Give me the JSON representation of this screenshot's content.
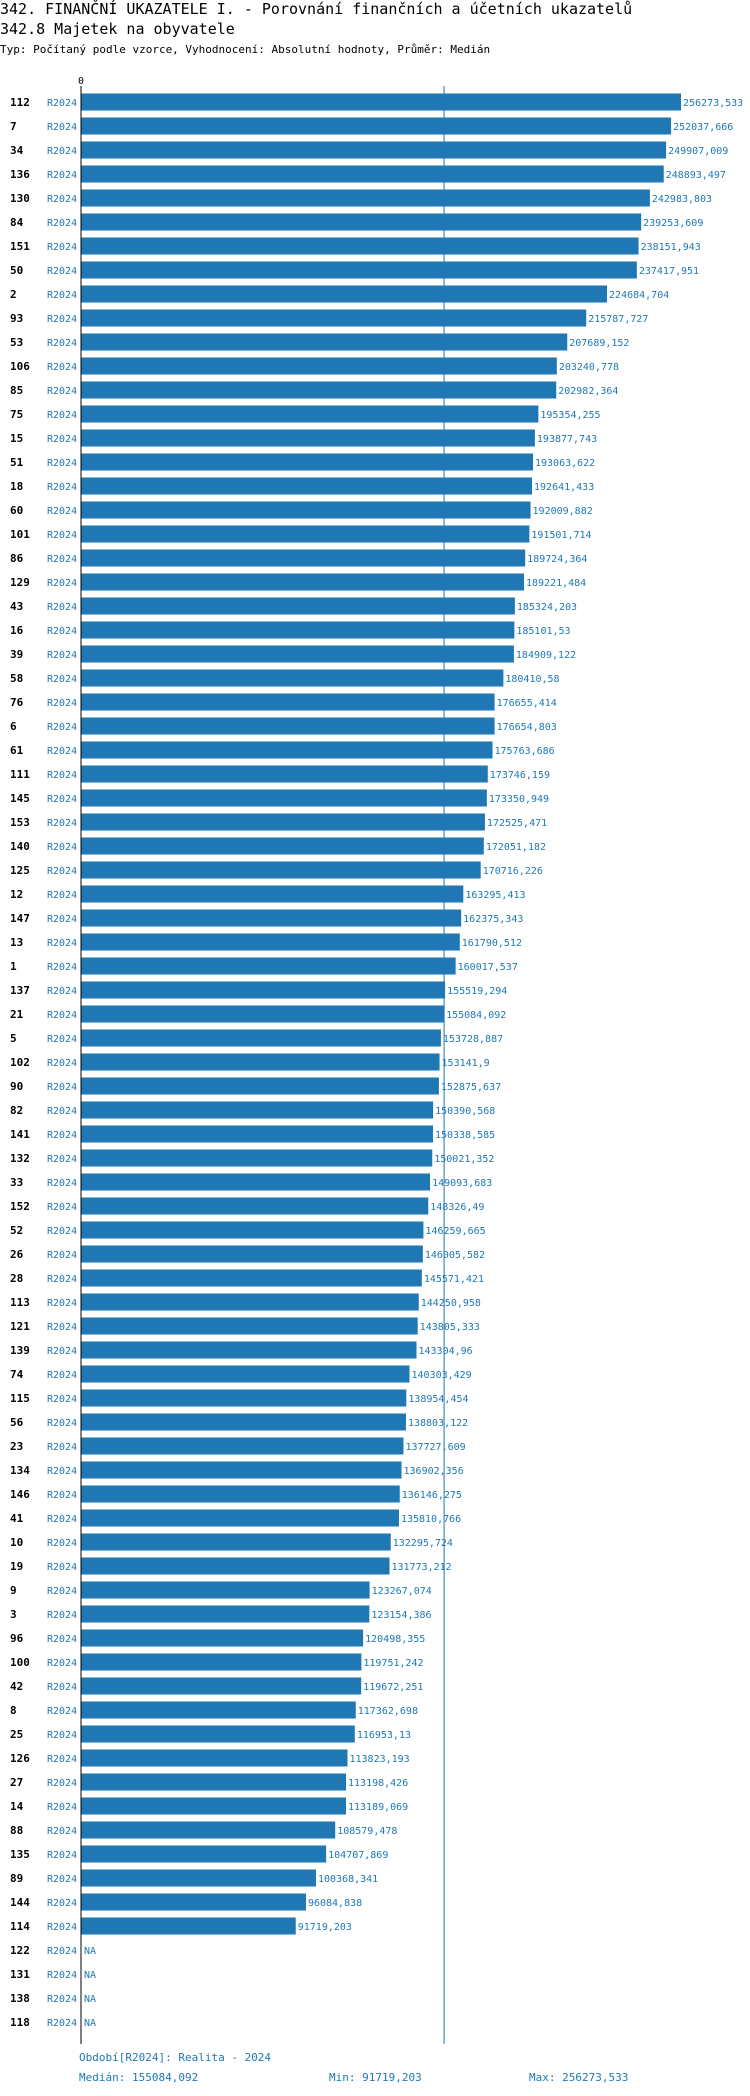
{
  "header": {
    "title": "342. FINANČNÍ UKAZATELE I. - Porovnání finančních a účetních ukazatelů",
    "subtitle": "342.8 Majetek na obyvatele",
    "type_line": "Typ: Počítaný podle vzorce, Vyhodnocení: Absolutní hodnoty, Průměr: Medián"
  },
  "chart_data": {
    "type": "bar",
    "orientation": "horizontal",
    "axis_zero_label": "0",
    "period_label": "R2024",
    "categories": [
      "112",
      "7",
      "34",
      "136",
      "130",
      "84",
      "151",
      "50",
      "2",
      "93",
      "53",
      "106",
      "85",
      "75",
      "15",
      "51",
      "18",
      "60",
      "101",
      "86",
      "129",
      "43",
      "16",
      "39",
      "58",
      "76",
      "6",
      "61",
      "111",
      "145",
      "153",
      "140",
      "125",
      "12",
      "147",
      "13",
      "1",
      "137",
      "21",
      "5",
      "102",
      "90",
      "82",
      "141",
      "132",
      "33",
      "152",
      "52",
      "26",
      "28",
      "113",
      "121",
      "139",
      "74",
      "115",
      "56",
      "23",
      "134",
      "146",
      "41",
      "10",
      "19",
      "9",
      "3",
      "96",
      "100",
      "42",
      "8",
      "25",
      "126",
      "27",
      "14",
      "88",
      "135",
      "89",
      "144",
      "114",
      "122",
      "131",
      "138",
      "118"
    ],
    "values": [
      256273.533,
      252037.666,
      249907.009,
      248893.497,
      242983.803,
      239253.609,
      238151.943,
      237417.951,
      224684.704,
      215787.727,
      207689.152,
      203240.778,
      202982.364,
      195354.255,
      193877.743,
      193063.622,
      192641.433,
      192009.882,
      191501.714,
      189724.364,
      189221.484,
      185324.203,
      185101.53,
      184909.122,
      180410.58,
      176655.414,
      176654.803,
      175763.686,
      173746.159,
      173350.949,
      172525.471,
      172051.182,
      170716.226,
      163295.413,
      162375.343,
      161790.512,
      160017.537,
      155519.294,
      155084.092,
      153728.887,
      153141.9,
      152875.637,
      150390.568,
      150338.585,
      150021.352,
      149093.683,
      148326.49,
      146259.665,
      146005.582,
      145571.421,
      144250.958,
      143805.333,
      143304.96,
      140303.429,
      138954.454,
      138803.122,
      137727.609,
      136902.356,
      136146.275,
      135810.766,
      132295.724,
      131773.212,
      123267.074,
      123154.386,
      120498.355,
      119751.242,
      119672.251,
      117362.698,
      116953.13,
      113823.193,
      113198.426,
      113189.069,
      108579.478,
      104707.869,
      100368.341,
      96084.838,
      91719.203,
      null,
      null,
      null,
      null
    ],
    "value_labels": [
      "256273,533",
      "252037,666",
      "249907,009",
      "248893,497",
      "242983,803",
      "239253,609",
      "238151,943",
      "237417,951",
      "224684,704",
      "215787,727",
      "207689,152",
      "203240,778",
      "202982,364",
      "195354,255",
      "193877,743",
      "193063,622",
      "192641,433",
      "192009,882",
      "191501,714",
      "189724,364",
      "189221,484",
      "185324,203",
      "185101,53",
      "184909,122",
      "180410,58",
      "176655,414",
      "176654,803",
      "175763,686",
      "173746,159",
      "173350,949",
      "172525,471",
      "172051,182",
      "170716,226",
      "163295,413",
      "162375,343",
      "161790,512",
      "160017,537",
      "155519,294",
      "155084,092",
      "153728,887",
      "153141,9",
      "152875,637",
      "150390,568",
      "150338,585",
      "150021,352",
      "149093,683",
      "148326,49",
      "146259,665",
      "146005,582",
      "145571,421",
      "144250,958",
      "143805,333",
      "143304,96",
      "140303,429",
      "138954,454",
      "138803,122",
      "137727,609",
      "136902,356",
      "136146,275",
      "135810,766",
      "132295,724",
      "131773,212",
      "123267,074",
      "123154,386",
      "120498,355",
      "119751,242",
      "119672,251",
      "117362,698",
      "116953,13",
      "113823,193",
      "113198,426",
      "113189,069",
      "108579,478",
      "104707,869",
      "100368,341",
      "96084,838",
      "91719,203",
      "NA",
      "NA",
      "NA",
      "NA"
    ],
    "median": 155084.092,
    "xlim": [
      0,
      256273.533
    ],
    "colors": {
      "bar": "#1f77b4",
      "median_line": "#1f77b4",
      "label": "#1f77b4",
      "axis": "#000000"
    }
  },
  "footer": {
    "period": "Období[R2024]: Realita - 2024",
    "median": "Medián: 155084,092",
    "min": "Min: 91719,203",
    "max": "Max: 256273,533"
  }
}
